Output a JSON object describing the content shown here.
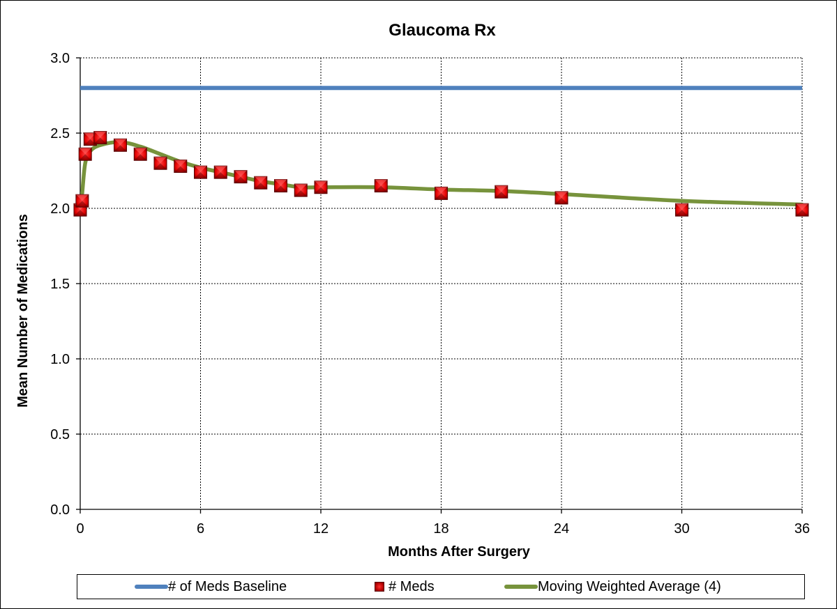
{
  "colors": {
    "baseline": "#4f81bd",
    "meds_marker": "#e00000",
    "meds_marker_dark": "#800000",
    "moving_avg": "#77933c",
    "grid": "#000000"
  },
  "chart_data": {
    "type": "line",
    "title": "Glaucoma Rx",
    "xlabel": "Months After Surgery",
    "ylabel": "Mean Number of Medications",
    "xlim": [
      0,
      36
    ],
    "ylim": [
      0,
      3
    ],
    "x_ticks": [
      0,
      6,
      12,
      18,
      24,
      30,
      36
    ],
    "x_tick_labels": [
      "0",
      "6",
      "12",
      "18",
      "24",
      "30",
      "36"
    ],
    "y_ticks": [
      0,
      0.5,
      1,
      1.5,
      2,
      2.5,
      3
    ],
    "y_tick_labels": [
      "0.0",
      "0.5",
      "1.0",
      "1.5",
      "2.0",
      "2.5",
      "3.0"
    ],
    "grid": true,
    "legend_position": "bottom",
    "series": [
      {
        "name": "# of Meds Baseline",
        "kind": "line",
        "x": [
          0,
          36
        ],
        "y": [
          2.8,
          2.8
        ]
      },
      {
        "name": "# Meds",
        "kind": "markers",
        "x": [
          0,
          0.1,
          0.25,
          0.5,
          1,
          2,
          3,
          4,
          5,
          6,
          7,
          8,
          9,
          10,
          11,
          12,
          15,
          18,
          21,
          24,
          30,
          36
        ],
        "y": [
          1.99,
          2.05,
          2.36,
          2.46,
          2.47,
          2.42,
          2.36,
          2.3,
          2.28,
          2.24,
          2.24,
          2.21,
          2.17,
          2.15,
          2.12,
          2.14,
          2.15,
          2.1,
          2.11,
          2.07,
          1.99,
          1.99
        ]
      },
      {
        "name": "Moving Weighted Average (4)",
        "kind": "smooth-line",
        "x": [
          0.1,
          0.25,
          0.5,
          1,
          2,
          3,
          4,
          5,
          6,
          7,
          8,
          9,
          10,
          11,
          12,
          15,
          18,
          21,
          24,
          30,
          36
        ],
        "y": [
          2.1,
          2.3,
          2.38,
          2.42,
          2.44,
          2.41,
          2.36,
          2.31,
          2.27,
          2.24,
          2.21,
          2.18,
          2.16,
          2.14,
          2.14,
          2.14,
          2.125,
          2.115,
          2.095,
          2.05,
          2.025
        ]
      }
    ]
  }
}
